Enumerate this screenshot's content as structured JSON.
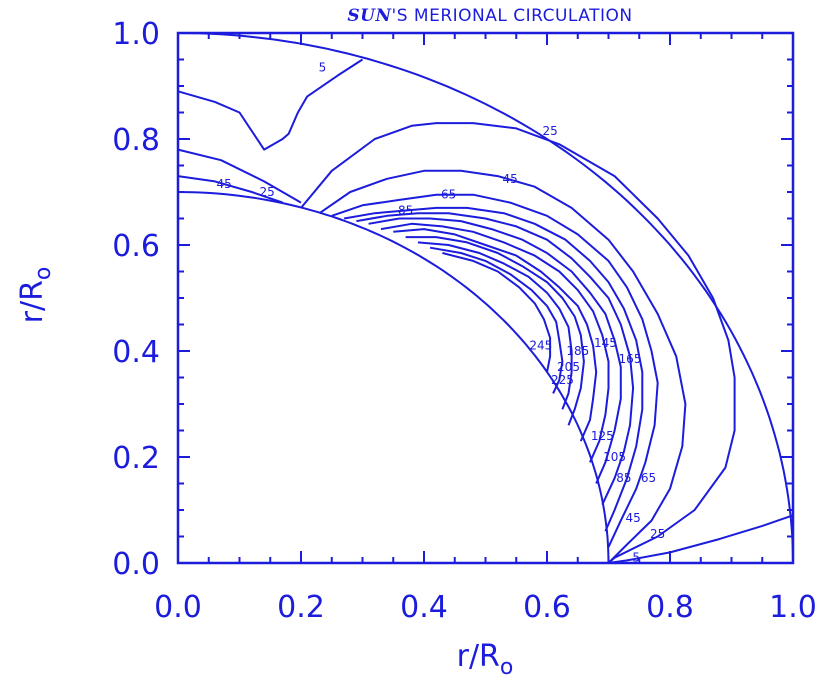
{
  "colors": {
    "ink": "#1c1cdc",
    "background": "#ffffff"
  },
  "chart_data": {
    "type": "contour",
    "title": {
      "italic_part": "SUN",
      "rest": "'S MERIONAL CIRCULATION"
    },
    "xlabel": {
      "main": "r/R",
      "sub": "o"
    },
    "ylabel": {
      "main": "r/R",
      "sub": "o"
    },
    "xlim": [
      0.0,
      1.0
    ],
    "ylim": [
      0.0,
      1.0
    ],
    "xticks": [
      "0.0",
      "0.2",
      "0.4",
      "0.6",
      "0.8",
      "1.0"
    ],
    "yticks": [
      "0.0",
      "0.2",
      "0.4",
      "0.6",
      "0.8",
      "1.0"
    ],
    "grid": false,
    "boundaries": {
      "inner_radius": 0.7,
      "outer_radius": 1.0
    },
    "contours": [
      {
        "level": "5",
        "segments": [
          [
            [
              0.0,
              0.89
            ],
            [
              0.06,
              0.87
            ],
            [
              0.1,
              0.85
            ],
            [
              0.14,
              0.78
            ],
            [
              0.17,
              0.8
            ],
            [
              0.18,
              0.81
            ],
            [
              0.195,
              0.85
            ],
            [
              0.21,
              0.88
            ],
            [
              0.26,
              0.92
            ],
            [
              0.3,
              0.95
            ]
          ],
          [
            [
              0.7,
              0.0
            ],
            [
              0.73,
              0.005
            ],
            [
              0.8,
              0.02
            ],
            [
              0.88,
              0.045
            ],
            [
              0.95,
              0.07
            ],
            [
              1.0,
              0.09
            ]
          ]
        ]
      },
      {
        "level": "25",
        "segments": [
          [
            [
              0.0,
              0.78
            ],
            [
              0.07,
              0.76
            ],
            [
              0.14,
              0.72
            ],
            [
              0.2,
              0.68
            ]
          ],
          [
            [
              0.2,
              0.67
            ],
            [
              0.25,
              0.74
            ],
            [
              0.32,
              0.8
            ],
            [
              0.38,
              0.825
            ],
            [
              0.42,
              0.83
            ],
            [
              0.48,
              0.83
            ],
            [
              0.55,
              0.82
            ],
            [
              0.62,
              0.79
            ],
            [
              0.71,
              0.73
            ],
            [
              0.78,
              0.65
            ],
            [
              0.83,
              0.58
            ],
            [
              0.87,
              0.5
            ],
            [
              0.895,
              0.42
            ],
            [
              0.905,
              0.35
            ],
            [
              0.905,
              0.25
            ],
            [
              0.89,
              0.18
            ],
            [
              0.84,
              0.1
            ],
            [
              0.78,
              0.05
            ],
            [
              0.71,
              0.01
            ],
            [
              0.7,
              0.0
            ]
          ]
        ]
      },
      {
        "level": "45",
        "segments": [
          [
            [
              0.0,
              0.73
            ],
            [
              0.06,
              0.72
            ],
            [
              0.12,
              0.7
            ],
            [
              0.17,
              0.68
            ]
          ],
          [
            [
              0.23,
              0.66
            ],
            [
              0.28,
              0.7
            ],
            [
              0.34,
              0.725
            ],
            [
              0.4,
              0.74
            ],
            [
              0.46,
              0.74
            ],
            [
              0.52,
              0.73
            ],
            [
              0.58,
              0.71
            ],
            [
              0.64,
              0.67
            ],
            [
              0.7,
              0.61
            ],
            [
              0.74,
              0.55
            ],
            [
              0.78,
              0.47
            ],
            [
              0.81,
              0.39
            ],
            [
              0.825,
              0.3
            ],
            [
              0.82,
              0.22
            ],
            [
              0.8,
              0.14
            ],
            [
              0.77,
              0.08
            ],
            [
              0.73,
              0.035
            ],
            [
              0.7,
              0.0
            ]
          ]
        ]
      },
      {
        "level": "65",
        "segments": [
          [
            [
              0.25,
              0.655
            ],
            [
              0.3,
              0.675
            ],
            [
              0.36,
              0.685
            ],
            [
              0.42,
              0.695
            ],
            [
              0.48,
              0.695
            ],
            [
              0.54,
              0.68
            ],
            [
              0.6,
              0.655
            ],
            [
              0.65,
              0.62
            ],
            [
              0.7,
              0.57
            ],
            [
              0.73,
              0.52
            ],
            [
              0.755,
              0.46
            ],
            [
              0.77,
              0.4
            ],
            [
              0.78,
              0.34
            ],
            [
              0.775,
              0.26
            ],
            [
              0.76,
              0.19
            ],
            [
              0.745,
              0.14
            ],
            [
              0.72,
              0.08
            ],
            [
              0.7,
              0.03
            ]
          ]
        ]
      },
      {
        "level": "85",
        "segments": [
          [
            [
              0.27,
              0.65
            ],
            [
              0.32,
              0.66
            ],
            [
              0.37,
              0.665
            ],
            [
              0.42,
              0.67
            ],
            [
              0.47,
              0.67
            ],
            [
              0.53,
              0.66
            ],
            [
              0.58,
              0.64
            ],
            [
              0.63,
              0.61
            ],
            [
              0.67,
              0.57
            ],
            [
              0.7,
              0.53
            ],
            [
              0.725,
              0.48
            ],
            [
              0.745,
              0.42
            ],
            [
              0.755,
              0.36
            ],
            [
              0.755,
              0.29
            ],
            [
              0.745,
              0.22
            ],
            [
              0.73,
              0.16
            ],
            [
              0.71,
              0.1
            ],
            [
              0.695,
              0.06
            ]
          ]
        ]
      },
      {
        "level": "105",
        "segments": [
          [
            [
              0.29,
              0.645
            ],
            [
              0.34,
              0.655
            ],
            [
              0.39,
              0.66
            ],
            [
              0.44,
              0.66
            ],
            [
              0.5,
              0.65
            ],
            [
              0.55,
              0.635
            ],
            [
              0.6,
              0.61
            ],
            [
              0.64,
              0.575
            ],
            [
              0.67,
              0.54
            ],
            [
              0.7,
              0.5
            ],
            [
              0.72,
              0.45
            ],
            [
              0.735,
              0.39
            ],
            [
              0.74,
              0.33
            ],
            [
              0.735,
              0.26
            ],
            [
              0.725,
              0.21
            ],
            [
              0.71,
              0.16
            ],
            [
              0.69,
              0.11
            ]
          ]
        ]
      },
      {
        "level": "125",
        "segments": [
          [
            [
              0.31,
              0.64
            ],
            [
              0.36,
              0.65
            ],
            [
              0.41,
              0.65
            ],
            [
              0.46,
              0.645
            ],
            [
              0.51,
              0.63
            ],
            [
              0.56,
              0.61
            ],
            [
              0.6,
              0.585
            ],
            [
              0.64,
              0.55
            ],
            [
              0.67,
              0.51
            ],
            [
              0.695,
              0.47
            ],
            [
              0.71,
              0.42
            ],
            [
              0.72,
              0.37
            ],
            [
              0.72,
              0.31
            ],
            [
              0.71,
              0.25
            ],
            [
              0.695,
              0.19
            ],
            [
              0.68,
              0.15
            ]
          ]
        ]
      },
      {
        "level": "145",
        "segments": [
          [
            [
              0.33,
              0.63
            ],
            [
              0.38,
              0.64
            ],
            [
              0.43,
              0.635
            ],
            [
              0.48,
              0.625
            ],
            [
              0.53,
              0.605
            ],
            [
              0.58,
              0.58
            ],
            [
              0.62,
              0.55
            ],
            [
              0.65,
              0.515
            ],
            [
              0.675,
              0.475
            ],
            [
              0.69,
              0.43
            ],
            [
              0.7,
              0.38
            ],
            [
              0.7,
              0.33
            ],
            [
              0.695,
              0.28
            ],
            [
              0.685,
              0.23
            ],
            [
              0.67,
              0.19
            ]
          ]
        ]
      },
      {
        "level": "165",
        "segments": [
          [
            [
              0.35,
              0.625
            ],
            [
              0.4,
              0.63
            ],
            [
              0.45,
              0.62
            ],
            [
              0.5,
              0.6
            ],
            [
              0.55,
              0.58
            ],
            [
              0.59,
              0.55
            ],
            [
              0.62,
              0.52
            ],
            [
              0.65,
              0.485
            ],
            [
              0.665,
              0.45
            ],
            [
              0.675,
              0.41
            ],
            [
              0.68,
              0.36
            ],
            [
              0.675,
              0.31
            ],
            [
              0.67,
              0.27
            ],
            [
              0.655,
              0.23
            ]
          ]
        ]
      },
      {
        "level": "185",
        "segments": [
          [
            [
              0.37,
              0.615
            ],
            [
              0.42,
              0.615
            ],
            [
              0.47,
              0.605
            ],
            [
              0.52,
              0.585
            ],
            [
              0.56,
              0.56
            ],
            [
              0.6,
              0.53
            ],
            [
              0.625,
              0.5
            ],
            [
              0.645,
              0.465
            ],
            [
              0.655,
              0.43
            ],
            [
              0.66,
              0.38
            ],
            [
              0.655,
              0.33
            ],
            [
              0.645,
              0.29
            ],
            [
              0.635,
              0.26
            ]
          ]
        ]
      },
      {
        "level": "205",
        "segments": [
          [
            [
              0.39,
              0.605
            ],
            [
              0.44,
              0.6
            ],
            [
              0.49,
              0.585
            ],
            [
              0.53,
              0.565
            ],
            [
              0.57,
              0.54
            ],
            [
              0.6,
              0.51
            ],
            [
              0.62,
              0.48
            ],
            [
              0.635,
              0.445
            ],
            [
              0.64,
              0.4
            ],
            [
              0.64,
              0.36
            ],
            [
              0.635,
              0.32
            ],
            [
              0.625,
              0.29
            ]
          ]
        ]
      },
      {
        "level": "225",
        "segments": [
          [
            [
              0.41,
              0.595
            ],
            [
              0.46,
              0.585
            ],
            [
              0.5,
              0.57
            ],
            [
              0.54,
              0.545
            ],
            [
              0.575,
              0.515
            ],
            [
              0.6,
              0.485
            ],
            [
              0.615,
              0.455
            ],
            [
              0.62,
              0.42
            ],
            [
              0.625,
              0.38
            ],
            [
              0.62,
              0.345
            ],
            [
              0.61,
              0.32
            ]
          ]
        ]
      },
      {
        "level": "245",
        "segments": [
          [
            [
              0.43,
              0.585
            ],
            [
              0.48,
              0.57
            ],
            [
              0.52,
              0.55
            ],
            [
              0.555,
              0.52
            ],
            [
              0.58,
              0.49
            ],
            [
              0.595,
              0.46
            ],
            [
              0.605,
              0.425
            ],
            [
              0.605,
              0.39
            ],
            [
              0.6,
              0.36
            ]
          ]
        ]
      }
    ],
    "contour_labels": [
      {
        "text": "5",
        "x": 0.235,
        "y": 0.935
      },
      {
        "text": "25",
        "x": 0.605,
        "y": 0.815
      },
      {
        "text": "45",
        "x": 0.54,
        "y": 0.725
      },
      {
        "text": "65",
        "x": 0.44,
        "y": 0.695
      },
      {
        "text": "85",
        "x": 0.37,
        "y": 0.665
      },
      {
        "text": "45",
        "x": 0.075,
        "y": 0.715
      },
      {
        "text": "25",
        "x": 0.145,
        "y": 0.7
      },
      {
        "text": "145",
        "x": 0.695,
        "y": 0.415
      },
      {
        "text": "165",
        "x": 0.735,
        "y": 0.385
      },
      {
        "text": "185",
        "x": 0.65,
        "y": 0.4
      },
      {
        "text": "205",
        "x": 0.635,
        "y": 0.37
      },
      {
        "text": "225",
        "x": 0.625,
        "y": 0.345
      },
      {
        "text": "245",
        "x": 0.59,
        "y": 0.41
      },
      {
        "text": "125",
        "x": 0.69,
        "y": 0.24
      },
      {
        "text": "105",
        "x": 0.71,
        "y": 0.2
      },
      {
        "text": "85",
        "x": 0.725,
        "y": 0.16
      },
      {
        "text": "65",
        "x": 0.765,
        "y": 0.16
      },
      {
        "text": "45",
        "x": 0.74,
        "y": 0.085
      },
      {
        "text": "25",
        "x": 0.78,
        "y": 0.055
      },
      {
        "text": "5",
        "x": 0.745,
        "y": 0.01
      }
    ]
  }
}
